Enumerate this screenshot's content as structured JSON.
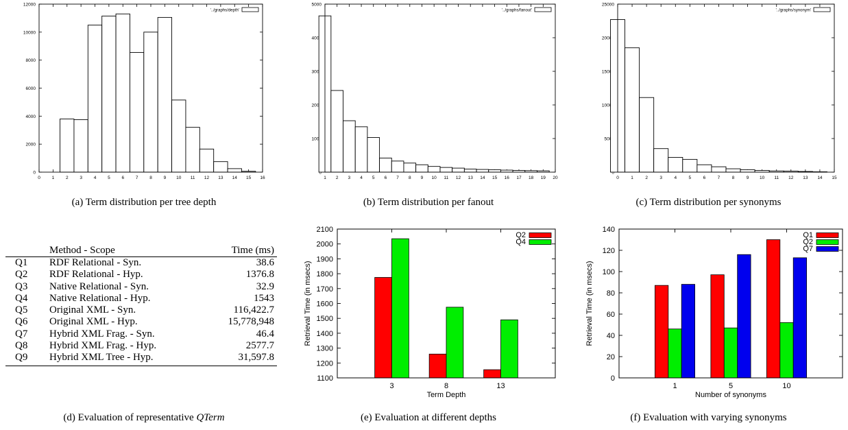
{
  "captions": {
    "a": "(a)  Term distribution per tree depth",
    "b": "(b)  Term distribution per fanout",
    "c": "(c)  Term distribution per synonyms",
    "d_prefix": "(d)  Evaluation of representative ",
    "d_italic": "QTerm",
    "e": "(e)  Evaluation at different depths",
    "f": "(f)  Evaluation with varying synonyms"
  },
  "table": {
    "headers": {
      "method": "Method - Scope",
      "time": "Time (ms)"
    },
    "rows": [
      {
        "id": "Q1",
        "method": "RDF Relational - Syn.",
        "time": "38.6"
      },
      {
        "id": "Q2",
        "method": "RDF Relational - Hyp.",
        "time": "1376.8"
      },
      {
        "id": "Q3",
        "method": "Native Relational - Syn.",
        "time": "32.9"
      },
      {
        "id": "Q4",
        "method": "Native Relational - Hyp.",
        "time": "1543"
      },
      {
        "id": "Q5",
        "method": "Original XML - Syn.",
        "time": "116,422.7"
      },
      {
        "id": "Q6",
        "method": "Original XML - Hyp.",
        "time": "15,778,948"
      },
      {
        "id": "Q7",
        "method": "Hybrid XML Frag. - Syn.",
        "time": "46.4"
      },
      {
        "id": "Q8",
        "method": "Hybrid XML Frag. - Hyp.",
        "time": "2577.7"
      },
      {
        "id": "Q9",
        "method": "Hybrid XML Tree - Hyp.",
        "time": "31,597.8"
      }
    ]
  },
  "chart_data": [
    {
      "id": "a",
      "type": "bar",
      "legend": "'../graphs/depth'",
      "legend_position": "top-right",
      "xticks": [
        0,
        1,
        2,
        3,
        4,
        5,
        6,
        7,
        8,
        9,
        10,
        11,
        12,
        13,
        14,
        15,
        16
      ],
      "ylim": [
        0,
        12000
      ],
      "yticks": [
        0,
        2000,
        4000,
        6000,
        8000,
        10000,
        12000
      ],
      "x": [
        2,
        3,
        4,
        5,
        6,
        7,
        8,
        9,
        10,
        11,
        12,
        13,
        14,
        15
      ],
      "values": [
        3800,
        3750,
        10500,
        11150,
        11300,
        8550,
        10000,
        11050,
        5150,
        3200,
        1650,
        750,
        250,
        60
      ]
    },
    {
      "id": "b",
      "type": "bar",
      "legend": "'../graphs/fanout'",
      "legend_position": "top-right",
      "xticks": [
        1,
        2,
        3,
        4,
        5,
        6,
        7,
        8,
        9,
        10,
        11,
        12,
        13,
        14,
        15,
        16,
        17,
        18,
        19,
        20
      ],
      "ylim": [
        0,
        5000
      ],
      "yticks": [
        0,
        1000,
        2000,
        3000,
        4000,
        5000
      ],
      "x": [
        1,
        2,
        3,
        4,
        5,
        6,
        7,
        8,
        9,
        10,
        11,
        12,
        13,
        14,
        15,
        16,
        17,
        18,
        19
      ],
      "values": [
        4650,
        2430,
        1530,
        1350,
        1030,
        420,
        330,
        270,
        220,
        170,
        140,
        120,
        90,
        80,
        70,
        60,
        50,
        45,
        40
      ]
    },
    {
      "id": "c",
      "type": "bar",
      "legend": "'../graphs/synonym'",
      "legend_position": "top-right",
      "xticks": [
        0,
        1,
        2,
        3,
        4,
        5,
        6,
        7,
        8,
        9,
        10,
        11,
        12,
        13,
        14,
        15
      ],
      "ylim": [
        0,
        25000
      ],
      "yticks": [
        0,
        5000,
        10000,
        15000,
        20000,
        25000
      ],
      "x": [
        0,
        1,
        2,
        3,
        4,
        5,
        6,
        7,
        8,
        9,
        10,
        11,
        12,
        13,
        14
      ],
      "values": [
        22700,
        18500,
        11100,
        3500,
        2200,
        1900,
        1100,
        800,
        500,
        350,
        250,
        180,
        150,
        100,
        50
      ]
    },
    {
      "id": "e",
      "type": "bar",
      "xlabel": "Term Depth",
      "ylabel": "Retrieval Time (in msecs)",
      "categories": [
        "3",
        "8",
        "13"
      ],
      "ylim": [
        1100,
        2100
      ],
      "yticks": [
        1100,
        1200,
        1300,
        1400,
        1500,
        1600,
        1700,
        1800,
        1900,
        2000,
        2100
      ],
      "legend_position": "top-right",
      "series": [
        {
          "name": "Q2",
          "color": "#ff0000",
          "values": [
            1775,
            1260,
            1155
          ]
        },
        {
          "name": "Q4",
          "color": "#00ee00",
          "values": [
            2035,
            1575,
            1490
          ]
        }
      ]
    },
    {
      "id": "f",
      "type": "bar",
      "xlabel": "Number of synonyms",
      "ylabel": "Retrieval Time (in msecs)",
      "categories": [
        "1",
        "5",
        "10"
      ],
      "ylim": [
        0,
        140
      ],
      "yticks": [
        0,
        20,
        40,
        60,
        80,
        100,
        120,
        140
      ],
      "legend_position": "top-right",
      "series": [
        {
          "name": "Q1",
          "color": "#ff0000",
          "values": [
            87,
            97,
            130
          ]
        },
        {
          "name": "Q2",
          "color": "#00ee00",
          "values": [
            46,
            47,
            52
          ]
        },
        {
          "name": "Q7",
          "color": "#0000ee",
          "values": [
            88,
            116,
            113
          ]
        }
      ]
    }
  ]
}
